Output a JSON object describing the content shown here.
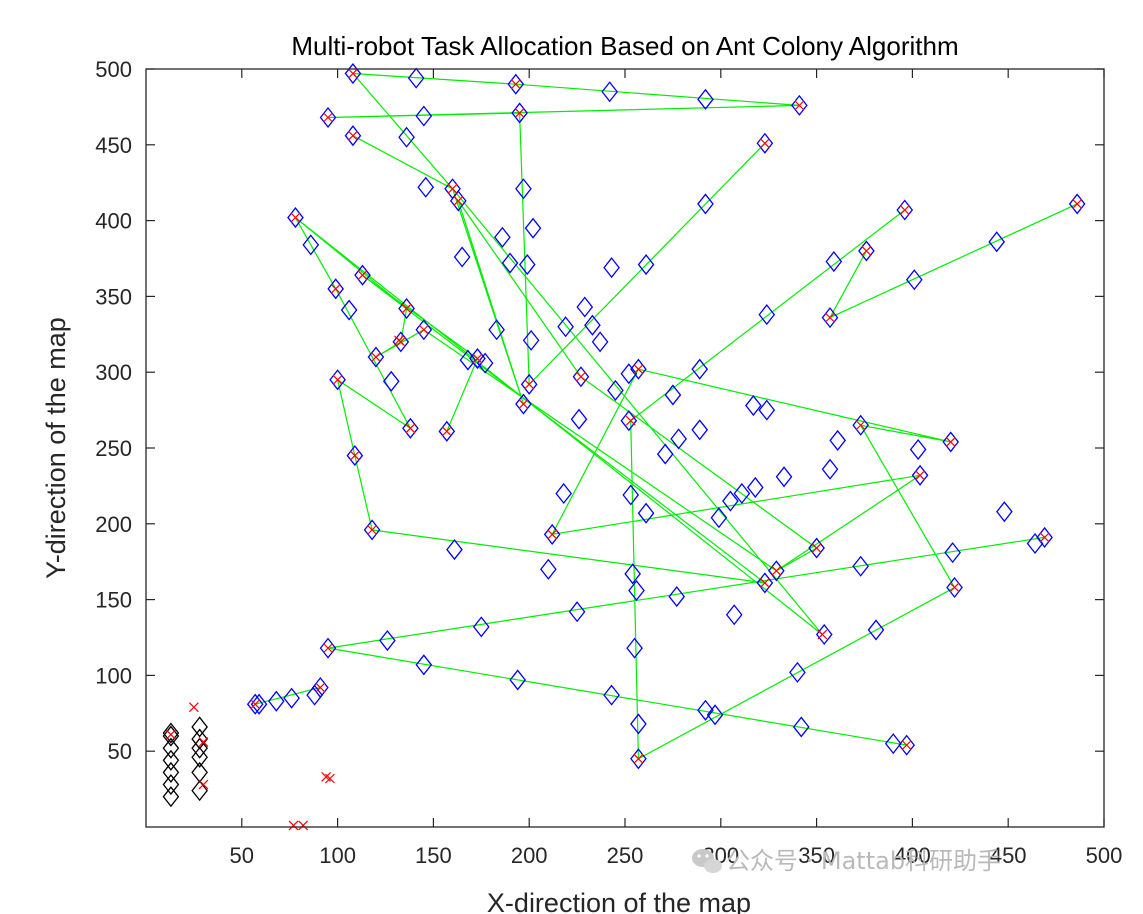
{
  "chart_data": {
    "type": "scatter",
    "title": "Multi-robot Task Allocation Based on Ant Colony Algorithm",
    "xlabel": "X-direction of the map",
    "ylabel": "Y-direction of the map",
    "xlim": [
      0,
      500
    ],
    "ylim": [
      0,
      500
    ],
    "xticks": [
      50,
      100,
      150,
      200,
      250,
      300,
      350,
      400,
      450,
      500
    ],
    "yticks": [
      50,
      100,
      150,
      200,
      250,
      300,
      350,
      400,
      450,
      500
    ],
    "grid": false,
    "colors": {
      "task": "#0000ff",
      "robot": "#000000",
      "path": "#00ee00",
      "marker": "#ff0000"
    },
    "robots": [
      [
        13,
        20
      ],
      [
        13,
        28
      ],
      [
        13,
        36
      ],
      [
        13,
        44
      ],
      [
        13,
        52
      ],
      [
        13,
        60
      ],
      [
        13,
        62
      ],
      [
        28,
        24
      ],
      [
        28,
        36
      ],
      [
        28,
        46
      ],
      [
        28,
        52
      ],
      [
        28,
        58
      ],
      [
        28,
        66
      ]
    ],
    "tasks": [
      [
        108,
        497
      ],
      [
        141,
        494
      ],
      [
        193,
        490
      ],
      [
        242,
        485
      ],
      [
        292,
        480
      ],
      [
        341,
        476
      ],
      [
        95,
        468
      ],
      [
        145,
        469
      ],
      [
        195,
        471
      ],
      [
        108,
        456
      ],
      [
        136,
        455
      ],
      [
        323,
        451
      ],
      [
        146,
        422
      ],
      [
        160,
        421
      ],
      [
        163,
        413
      ],
      [
        197,
        421
      ],
      [
        292,
        411
      ],
      [
        78,
        402
      ],
      [
        396,
        407
      ],
      [
        486,
        411
      ],
      [
        202,
        395
      ],
      [
        186,
        389
      ],
      [
        86,
        384
      ],
      [
        165,
        376
      ],
      [
        190,
        372
      ],
      [
        199,
        371
      ],
      [
        243,
        369
      ],
      [
        261,
        371
      ],
      [
        444,
        386
      ],
      [
        359,
        373
      ],
      [
        376,
        380
      ],
      [
        401,
        361
      ],
      [
        113,
        364
      ],
      [
        99,
        355
      ],
      [
        106,
        341
      ],
      [
        136,
        342
      ],
      [
        229,
        343
      ],
      [
        357,
        336
      ],
      [
        324,
        338
      ],
      [
        145,
        328
      ],
      [
        183,
        328
      ],
      [
        219,
        330
      ],
      [
        233,
        331
      ],
      [
        237,
        320
      ],
      [
        201,
        321
      ],
      [
        133,
        320
      ],
      [
        120,
        310
      ],
      [
        128,
        294
      ],
      [
        168,
        308
      ],
      [
        173,
        309
      ],
      [
        177,
        306
      ],
      [
        100,
        295
      ],
      [
        227,
        297
      ],
      [
        252,
        299
      ],
      [
        257,
        302
      ],
      [
        289,
        302
      ],
      [
        200,
        292
      ],
      [
        197,
        279
      ],
      [
        245,
        288
      ],
      [
        275,
        285
      ],
      [
        138,
        263
      ],
      [
        157,
        261
      ],
      [
        226,
        269
      ],
      [
        252,
        268
      ],
      [
        289,
        262
      ],
      [
        278,
        256
      ],
      [
        271,
        246
      ],
      [
        317,
        278
      ],
      [
        324,
        275
      ],
      [
        361,
        255
      ],
      [
        373,
        265
      ],
      [
        420,
        254
      ],
      [
        403,
        249
      ],
      [
        109,
        245
      ],
      [
        404,
        232
      ],
      [
        357,
        236
      ],
      [
        333,
        231
      ],
      [
        218,
        220
      ],
      [
        253,
        219
      ],
      [
        311,
        220
      ],
      [
        305,
        215
      ],
      [
        299,
        204
      ],
      [
        318,
        224
      ],
      [
        448,
        208
      ],
      [
        261,
        207
      ],
      [
        118,
        196
      ],
      [
        212,
        193
      ],
      [
        350,
        184
      ],
      [
        161,
        183
      ],
      [
        421,
        181
      ],
      [
        464,
        187
      ],
      [
        469,
        191
      ],
      [
        210,
        170
      ],
      [
        254,
        167
      ],
      [
        323,
        161
      ],
      [
        329,
        169
      ],
      [
        256,
        156
      ],
      [
        373,
        172
      ],
      [
        277,
        152
      ],
      [
        422,
        158
      ],
      [
        225,
        142
      ],
      [
        307,
        140
      ],
      [
        95,
        118
      ],
      [
        126,
        123
      ],
      [
        175,
        132
      ],
      [
        255,
        118
      ],
      [
        354,
        127
      ],
      [
        381,
        130
      ],
      [
        145,
        107
      ],
      [
        194,
        97
      ],
      [
        340,
        102
      ],
      [
        91,
        92
      ],
      [
        88,
        87
      ],
      [
        243,
        87
      ],
      [
        76,
        85
      ],
      [
        68,
        83
      ],
      [
        59,
        81
      ],
      [
        57,
        81
      ],
      [
        292,
        77
      ],
      [
        297,
        74
      ],
      [
        257,
        68
      ],
      [
        342,
        66
      ],
      [
        390,
        55
      ],
      [
        397,
        54
      ],
      [
        257,
        45
      ]
    ],
    "paths": [
      [
        [
          108,
          497
        ],
        [
          193,
          490
        ],
        [
          341,
          476
        ],
        [
          95,
          468
        ],
        [
          195,
          471
        ],
        [
          200,
          292
        ],
        [
          323,
          451
        ]
      ],
      [
        [
          108,
          497
        ],
        [
          160,
          421
        ],
        [
          197,
          279
        ],
        [
          163,
          413
        ],
        [
          227,
          297
        ],
        [
          350,
          184
        ],
        [
          329,
          169
        ],
        [
          145,
          328
        ]
      ],
      [
        [
          108,
          456
        ],
        [
          160,
          421
        ],
        [
          353,
          127
        ],
        [
          78,
          402
        ],
        [
          136,
          342
        ],
        [
          133,
          320
        ],
        [
          120,
          310
        ],
        [
          145,
          328
        ]
      ],
      [
        [
          78,
          402
        ],
        [
          99,
          355
        ],
        [
          138,
          263
        ],
        [
          100,
          295
        ],
        [
          109,
          245
        ],
        [
          118,
          196
        ],
        [
          323,
          161
        ],
        [
          113,
          364
        ],
        [
          173,
          309
        ],
        [
          157,
          261
        ]
      ],
      [
        [
          396,
          407
        ],
        [
          253,
          268
        ],
        [
          257,
          45
        ],
        [
          422,
          158
        ],
        [
          373,
          265
        ],
        [
          420,
          254
        ],
        [
          257,
          302
        ],
        [
          212,
          193
        ],
        [
          404,
          232
        ],
        [
          329,
          169
        ]
      ],
      [
        [
          486,
          411
        ],
        [
          357,
          336
        ],
        [
          376,
          380
        ]
      ],
      [
        [
          95,
          118
        ],
        [
          469,
          191
        ],
        [
          95,
          118
        ],
        [
          397,
          54
        ]
      ],
      [
        [
          57,
          81
        ],
        [
          91,
          92
        ]
      ]
    ]
  },
  "watermark": {
    "icon": "wechat-icon",
    "text": "公众号 · Mattab科研助手"
  }
}
